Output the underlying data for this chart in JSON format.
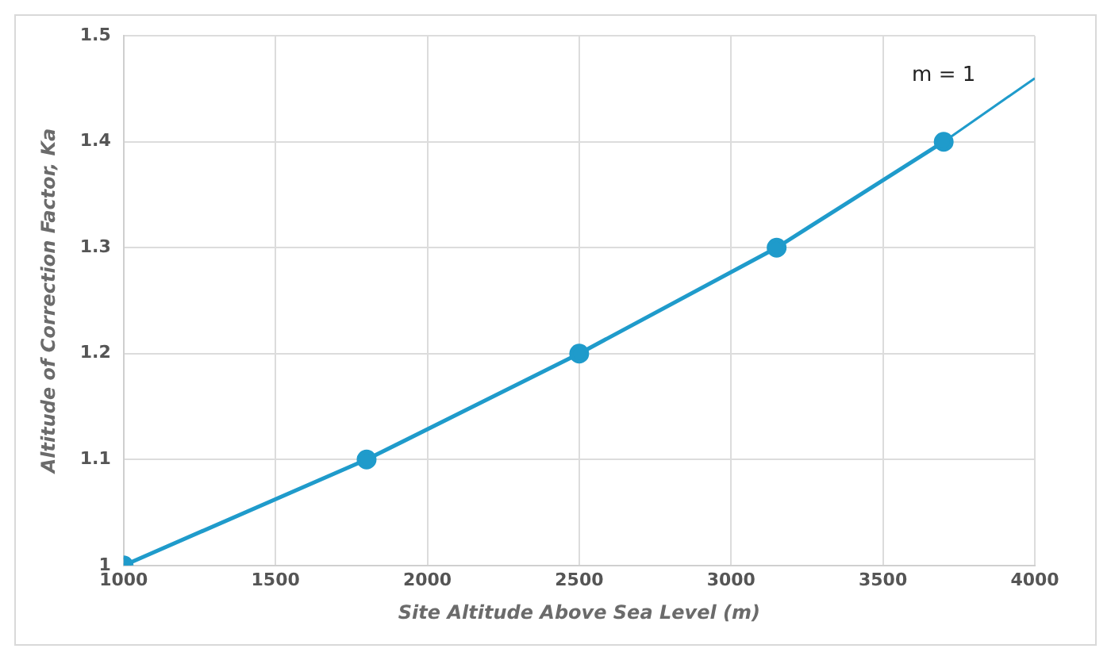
{
  "chart_data": {
    "type": "line",
    "xlabel": "Site Altitude Above Sea Level (m)",
    "ylabel": "Altitude of Correction Factor, Ka",
    "series": [
      {
        "x": [
          1000,
          1800,
          2500,
          3150,
          3700
        ],
        "values": [
          1,
          1.1,
          1.2,
          1.3,
          1.4
        ],
        "color": "#1f9bcb",
        "marker": "circle"
      },
      {
        "x": [
          3700,
          4000
        ],
        "values": [
          1.4,
          1.46
        ],
        "color": "#1f9bcb",
        "marker": "none"
      }
    ],
    "annotations": [
      "m = 1"
    ],
    "xlim": [
      1000,
      4000
    ],
    "xticks": [
      1000,
      1500,
      2000,
      2500,
      3000,
      3500,
      4000
    ],
    "ylim": [
      1,
      1.5
    ],
    "yticks": [
      1,
      1.1,
      1.2,
      1.3,
      1.4,
      1.5
    ],
    "grid": true,
    "legend": false
  }
}
